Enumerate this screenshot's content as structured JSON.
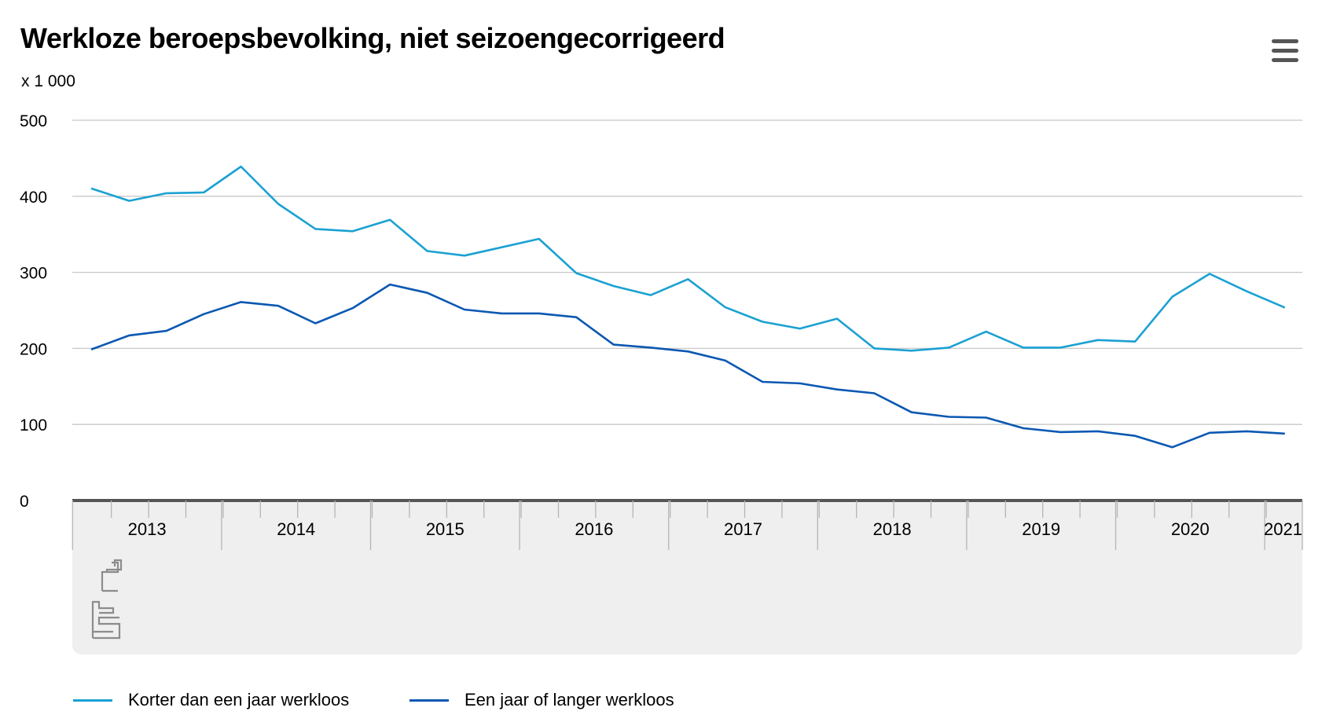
{
  "header": {
    "title": "Werkloze beroepsbevolking, niet seizoengecorrigeerd",
    "unit": "x 1 000",
    "menu_icon": "hamburger-menu-icon"
  },
  "logo": {
    "icon": "cbs-logo-icon"
  },
  "colors": {
    "series_1": "#1ba1d2",
    "series_2": "#0b58b2",
    "grid": "#c8c8c8",
    "axis": "#555555",
    "navigator_bg": "#efefef"
  },
  "chart_data": {
    "type": "line",
    "title": "Werkloze beroepsbevolking, niet seizoengecorrigeerd",
    "ylabel": "x 1 000",
    "xlabel": "",
    "ylim": [
      0,
      500
    ],
    "yticks": [
      "0",
      "100",
      "200",
      "300",
      "400",
      "500"
    ],
    "grid": true,
    "legend_position": "bottom-left",
    "x": [
      "2013 Q1",
      "2013 Q2",
      "2013 Q3",
      "2013 Q4",
      "2014 Q1",
      "2014 Q2",
      "2014 Q3",
      "2014 Q4",
      "2015 Q1",
      "2015 Q2",
      "2015 Q3",
      "2015 Q4",
      "2016 Q1",
      "2016 Q2",
      "2016 Q3",
      "2016 Q4",
      "2017 Q1",
      "2017 Q2",
      "2017 Q3",
      "2017 Q4",
      "2018 Q1",
      "2018 Q2",
      "2018 Q3",
      "2018 Q4",
      "2019 Q1",
      "2019 Q2",
      "2019 Q3",
      "2019 Q4",
      "2020 Q1",
      "2020 Q2",
      "2020 Q3",
      "2020 Q4",
      "2021 Q1"
    ],
    "year_labels": [
      "2013",
      "2014",
      "2015",
      "2016",
      "2017",
      "2018",
      "2019",
      "2020",
      "2021"
    ],
    "series": [
      {
        "name": "Korter dan een jaar werkloos",
        "values": [
          410,
          394,
          404,
          405,
          439,
          390,
          357,
          354,
          369,
          328,
          322,
          333,
          344,
          299,
          282,
          270,
          291,
          254,
          235,
          226,
          239,
          200,
          197,
          201,
          222,
          201,
          201,
          211,
          209,
          268,
          298,
          275,
          254
        ]
      },
      {
        "name": "Een jaar of langer werkloos",
        "values": [
          199,
          217,
          223,
          245,
          261,
          256,
          233,
          253,
          284,
          273,
          251,
          246,
          246,
          241,
          205,
          201,
          196,
          184,
          156,
          154,
          146,
          141,
          116,
          110,
          109,
          95,
          90,
          91,
          85,
          70,
          89,
          91,
          88
        ]
      }
    ]
  }
}
